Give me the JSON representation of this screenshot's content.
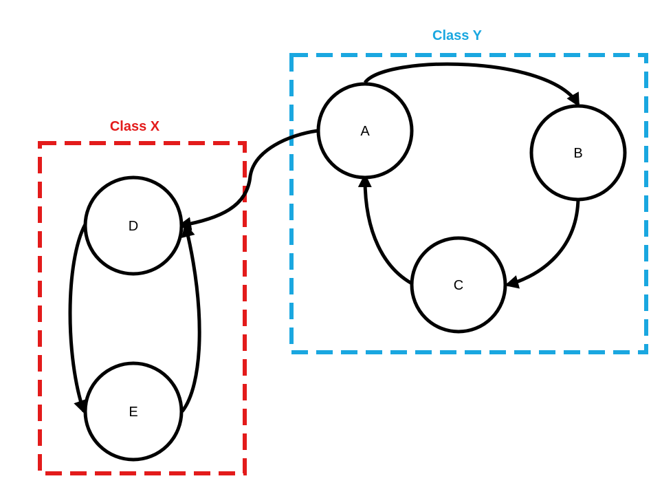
{
  "colors": {
    "class_x": "#e31b1b",
    "class_y": "#1aa7e0",
    "ink": "#000000"
  },
  "groups": {
    "class_x": {
      "label": "Class X"
    },
    "class_y": {
      "label": "Class Y"
    }
  },
  "nodes": {
    "A": {
      "label": "A"
    },
    "B": {
      "label": "B"
    },
    "C": {
      "label": "C"
    },
    "D": {
      "label": "D"
    },
    "E": {
      "label": "E"
    }
  },
  "edges": [
    {
      "from": "A",
      "to": "B"
    },
    {
      "from": "B",
      "to": "C"
    },
    {
      "from": "C",
      "to": "A"
    },
    {
      "from": "A",
      "to": "D"
    },
    {
      "from": "D",
      "to": "E"
    },
    {
      "from": "E",
      "to": "D"
    }
  ]
}
